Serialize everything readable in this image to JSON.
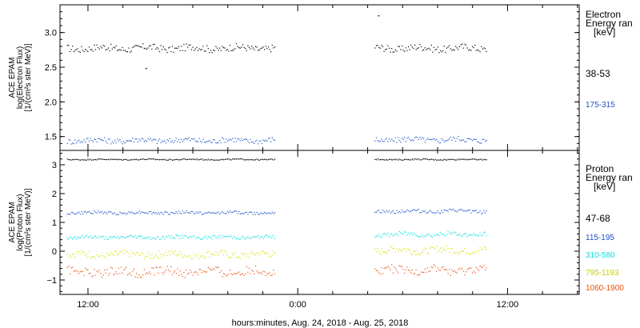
{
  "chart_data": [
    {
      "type": "scatter",
      "panel": "electron",
      "ylabel_lines": [
        "ACE EPAM",
        "log(Electron Flux)",
        "[1/(cm²s ster MeV)]"
      ],
      "ylim": [
        1.3,
        3.4
      ],
      "yticks": [
        1.5,
        2.0,
        2.5,
        3.0
      ],
      "ytick_labels": [
        "1.5",
        "2.0",
        "2.5",
        "3.0"
      ],
      "legend_title": [
        "Electron",
        "Energy ran",
        "[keV]"
      ],
      "series": [
        {
          "name": "38-53",
          "color": "#000000",
          "segments": [
            {
              "x_start": 10.8,
              "x_end": 22.7,
              "baseline": 2.78,
              "amplitude": 0.05
            },
            {
              "x_start": 28.4,
              "x_end": 34.8,
              "baseline": 2.78,
              "amplitude": 0.05
            }
          ]
        },
        {
          "name": "175-315",
          "color": "#1e50c8",
          "segments": [
            {
              "x_start": 10.8,
              "x_end": 22.7,
              "baseline": 1.45,
              "amplitude": 0.04
            },
            {
              "x_start": 28.4,
              "x_end": 34.8,
              "baseline": 1.46,
              "amplitude": 0.04
            }
          ]
        }
      ],
      "outliers": [
        {
          "x": 15.3,
          "y": 2.49,
          "color": "#000000"
        },
        {
          "x": 28.6,
          "y": 3.25,
          "color": "#000000"
        }
      ]
    },
    {
      "type": "scatter",
      "panel": "proton",
      "ylabel_lines": [
        "ACE EPAM",
        "log(Proton Flux)",
        "[1/(cm²s ster MeV)]"
      ],
      "ylim": [
        -1.5,
        3.5
      ],
      "yticks": [
        -1,
        0,
        1,
        2,
        3
      ],
      "ytick_labels": [
        "−1",
        "0",
        "1",
        "2",
        "3"
      ],
      "legend_title": [
        "Proton",
        "Energy ran",
        "[keV]"
      ],
      "series": [
        {
          "name": "47-68",
          "color": "#000000",
          "segments": [
            {
              "x_start": 10.8,
              "x_end": 22.7,
              "baseline": 3.2,
              "amplitude": 0.02
            },
            {
              "x_start": 28.4,
              "x_end": 34.8,
              "baseline": 3.2,
              "amplitude": 0.02
            }
          ]
        },
        {
          "name": "115-195",
          "color": "#1e50c8",
          "segments": [
            {
              "x_start": 10.8,
              "x_end": 22.7,
              "baseline": 1.35,
              "amplitude": 0.05
            },
            {
              "x_start": 28.4,
              "x_end": 34.8,
              "baseline": 1.4,
              "amplitude": 0.06
            }
          ]
        },
        {
          "name": "310-580",
          "color": "#00e0e0",
          "segments": [
            {
              "x_start": 10.8,
              "x_end": 22.7,
              "baseline": 0.5,
              "amplitude": 0.06
            },
            {
              "x_start": 28.4,
              "x_end": 34.8,
              "baseline": 0.6,
              "amplitude": 0.08
            }
          ]
        },
        {
          "name": "795-1193",
          "color": "#d8e000",
          "segments": [
            {
              "x_start": 10.8,
              "x_end": 22.7,
              "baseline": -0.1,
              "amplitude": 0.12
            },
            {
              "x_start": 28.4,
              "x_end": 34.8,
              "baseline": 0.05,
              "amplitude": 0.12
            }
          ]
        },
        {
          "name": "1060-1900",
          "color": "#e85010",
          "segments": [
            {
              "x_start": 10.8,
              "x_end": 22.7,
              "baseline": -0.7,
              "amplitude": 0.15
            },
            {
              "x_start": 28.4,
              "x_end": 34.8,
              "baseline": -0.65,
              "amplitude": 0.15
            }
          ]
        }
      ],
      "outliers": []
    }
  ],
  "x_axis": {
    "xlim": [
      10.4,
      40.1
    ],
    "ticks": [
      12,
      24,
      36
    ],
    "tick_labels": [
      "12:00",
      "0:00",
      "12:00"
    ],
    "minor_tick_step": 2,
    "xlabel": "hours:minutes, Aug. 24, 2018 - Aug. 25, 2018"
  }
}
